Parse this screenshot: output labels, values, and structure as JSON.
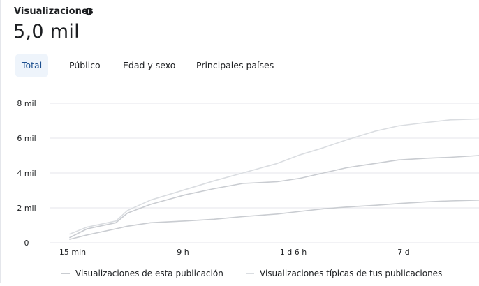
{
  "header": {
    "title": "Visualizaciones",
    "value": "5,0 mil"
  },
  "tabs": [
    {
      "label": "Total",
      "active": true
    },
    {
      "label": "Público",
      "active": false
    },
    {
      "label": "Edad y sexo",
      "active": false
    },
    {
      "label": "Principales países",
      "active": false
    }
  ],
  "colors": {
    "accent": "#1c4f8f",
    "series_this_post": "#c9ccd1",
    "series_typical": "#dadde1",
    "grid": "#e4e6eb"
  },
  "chart_data": {
    "type": "line",
    "xlabel": "",
    "ylabel": "",
    "x_tick_labels": [
      "15 min",
      "9 h",
      "1 d 6 h",
      "7 d"
    ],
    "y_tick_labels": [
      "0",
      "2 mil",
      "4 mil",
      "6 mil",
      "8 mil"
    ],
    "ylim": [
      0,
      8000
    ],
    "grid": true,
    "legend_placement": "bottom",
    "series": [
      {
        "name": "Visualizaciones de esta publicación",
        "points": [
          [
            0,
            300
          ],
          [
            0.3,
            800
          ],
          [
            0.8,
            1150
          ],
          [
            1.0,
            1700
          ],
          [
            1.4,
            2200
          ],
          [
            2.0,
            2750
          ],
          [
            2.5,
            3100
          ],
          [
            3.0,
            3400
          ],
          [
            3.6,
            3500
          ],
          [
            4.0,
            3700
          ],
          [
            4.4,
            4000
          ],
          [
            4.8,
            4300
          ],
          [
            5.3,
            4550
          ],
          [
            5.7,
            4750
          ],
          [
            6.2,
            4850
          ],
          [
            6.6,
            4900
          ],
          [
            7.1,
            5000
          ]
        ]
      },
      {
        "name": "Visualizaciones típicas de tus publicaciones",
        "points": [
          [
            0,
            500
          ],
          [
            0.3,
            900
          ],
          [
            0.8,
            1250
          ],
          [
            1.0,
            1850
          ],
          [
            1.4,
            2450
          ],
          [
            2.0,
            3050
          ],
          [
            2.5,
            3550
          ],
          [
            3.0,
            4000
          ],
          [
            3.6,
            4550
          ],
          [
            4.0,
            5050
          ],
          [
            4.4,
            5450
          ],
          [
            4.8,
            5900
          ],
          [
            5.3,
            6400
          ],
          [
            5.7,
            6700
          ],
          [
            6.2,
            6900
          ],
          [
            6.6,
            7050
          ],
          [
            7.1,
            7100
          ]
        ]
      },
      {
        "name": "",
        "points": [
          [
            0,
            200
          ],
          [
            0.3,
            450
          ],
          [
            0.8,
            800
          ],
          [
            1.0,
            950
          ],
          [
            1.4,
            1150
          ],
          [
            2.0,
            1250
          ],
          [
            2.5,
            1350
          ],
          [
            3.0,
            1500
          ],
          [
            3.6,
            1650
          ],
          [
            4.0,
            1800
          ],
          [
            4.4,
            1950
          ],
          [
            4.8,
            2050
          ],
          [
            5.3,
            2150
          ],
          [
            5.7,
            2250
          ],
          [
            6.2,
            2350
          ],
          [
            6.6,
            2400
          ],
          [
            7.1,
            2450
          ]
        ]
      }
    ]
  }
}
